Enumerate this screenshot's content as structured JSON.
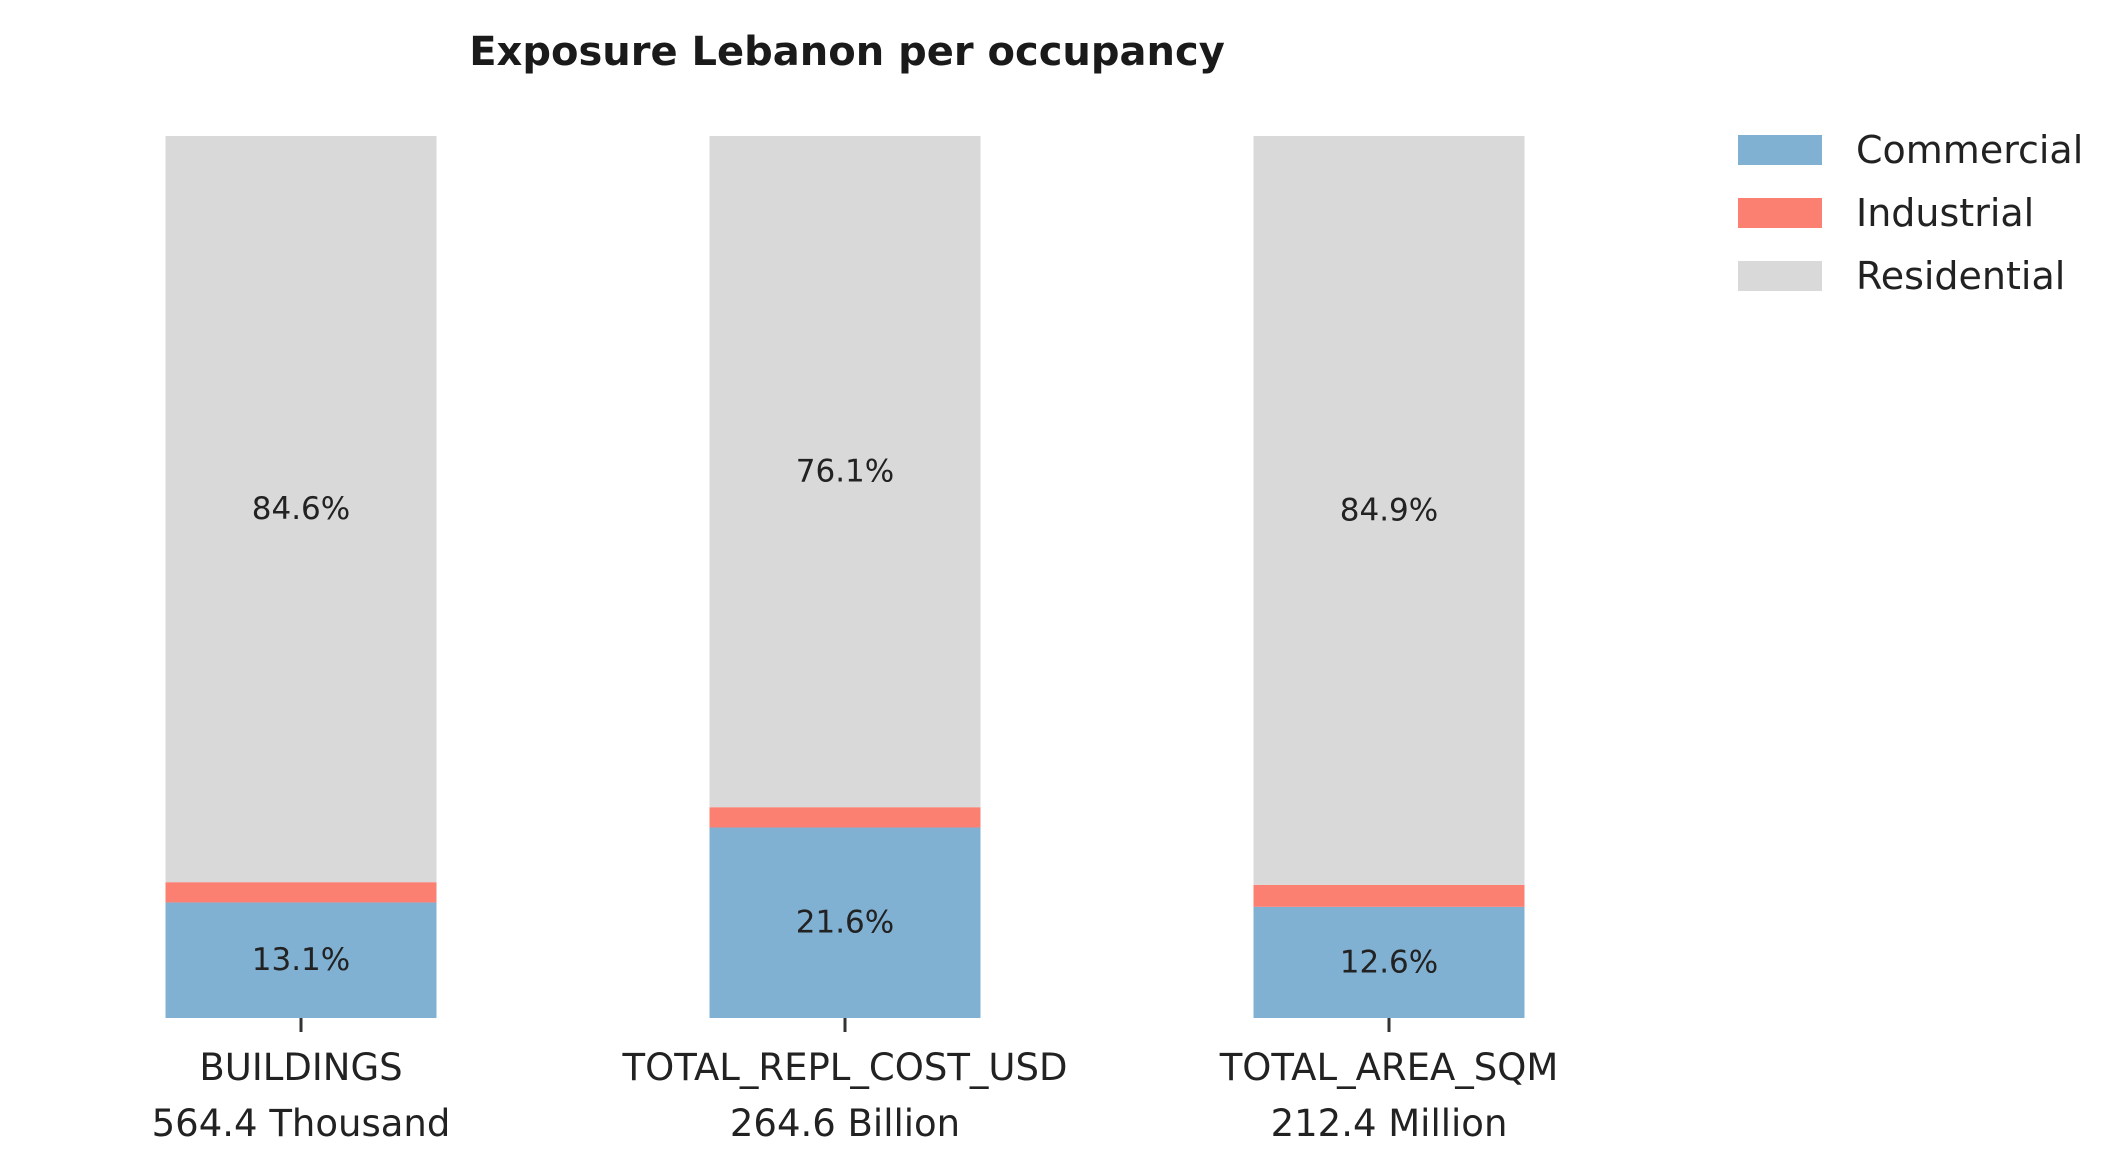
{
  "chart_data": {
    "type": "bar",
    "stacked": true,
    "normalized": true,
    "title": "Exposure Lebanon per occupancy",
    "xlabel": "",
    "ylabel": "",
    "ylim": [
      0,
      100
    ],
    "grid": false,
    "legend_position": "top-right",
    "categories": [
      "BUILDINGS",
      "TOTAL_REPL_COST_USD",
      "TOTAL_AREA_SQM"
    ],
    "category_totals": [
      "564.4 Thousand",
      "264.6 Billion",
      "212.4 Million"
    ],
    "series": [
      {
        "name": "Commercial",
        "color": "#80b1d3",
        "values": [
          13.1,
          21.6,
          12.6
        ],
        "labels": [
          "13.1%",
          "21.6%",
          "12.6%"
        ]
      },
      {
        "name": "Industrial",
        "color": "#fb8072",
        "values": [
          2.3,
          2.3,
          2.5
        ],
        "labels": [
          "",
          "",
          ""
        ]
      },
      {
        "name": "Residential",
        "color": "#d9d9d9",
        "values": [
          84.6,
          76.1,
          84.9
        ],
        "labels": [
          "84.6%",
          "76.1%",
          "84.9%"
        ]
      }
    ]
  }
}
